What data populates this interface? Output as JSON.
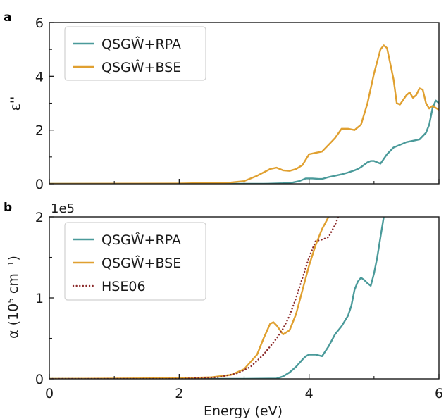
{
  "chart_data": [
    {
      "type": "line",
      "panel": "a",
      "xlabel": "",
      "ylabel": "ε''",
      "xlim": [
        0,
        6
      ],
      "ylim": [
        0,
        6
      ],
      "x_ticks": [
        "0",
        "2",
        "4",
        "6"
      ],
      "y_ticks": [
        "0",
        "2",
        "4",
        "6"
      ],
      "show_x_tick_labels": false,
      "grid": false,
      "legend_position": "top-left",
      "series": [
        {
          "name": "QSGŴ+RPA",
          "color": "#4a9a9a",
          "style": "solid",
          "x": [
            0,
            2.0,
            3.0,
            3.3,
            3.6,
            3.75,
            3.85,
            3.95,
            4.05,
            4.15,
            4.2,
            4.3,
            4.4,
            4.5,
            4.6,
            4.7,
            4.75,
            4.8,
            4.9,
            4.95,
            5.0,
            5.1,
            5.2,
            5.3,
            5.4,
            5.5,
            5.6,
            5.7,
            5.8,
            5.85,
            5.9,
            5.95,
            6.0
          ],
          "y": [
            0,
            0,
            0,
            0,
            0.02,
            0.05,
            0.1,
            0.2,
            0.2,
            0.18,
            0.18,
            0.25,
            0.3,
            0.35,
            0.42,
            0.5,
            0.55,
            0.62,
            0.8,
            0.85,
            0.85,
            0.75,
            1.1,
            1.35,
            1.45,
            1.55,
            1.6,
            1.65,
            1.9,
            2.2,
            2.8,
            3.1,
            3.0
          ]
        },
        {
          "name": "QSGŴ+BSE",
          "color": "#e0a030",
          "style": "solid",
          "x": [
            0,
            2.0,
            2.8,
            3.0,
            3.2,
            3.4,
            3.5,
            3.6,
            3.7,
            3.8,
            3.9,
            4.0,
            4.1,
            4.2,
            4.3,
            4.4,
            4.5,
            4.6,
            4.7,
            4.8,
            4.9,
            5.0,
            5.1,
            5.15,
            5.2,
            5.3,
            5.35,
            5.4,
            5.5,
            5.55,
            5.6,
            5.65,
            5.7,
            5.75,
            5.8,
            5.85,
            5.9,
            6.0
          ],
          "y": [
            0,
            0.01,
            0.05,
            0.1,
            0.3,
            0.55,
            0.6,
            0.5,
            0.48,
            0.55,
            0.7,
            1.1,
            1.15,
            1.2,
            1.45,
            1.7,
            2.05,
            2.05,
            2.0,
            2.2,
            3.0,
            4.1,
            5.0,
            5.15,
            5.05,
            3.9,
            3.0,
            2.95,
            3.3,
            3.4,
            3.2,
            3.3,
            3.55,
            3.5,
            3.0,
            2.8,
            2.9,
            2.75
          ]
        }
      ]
    },
    {
      "type": "line",
      "panel": "b",
      "xlabel": "Energy (eV)",
      "ylabel": "α (10⁵ cm⁻¹)",
      "y_multiplier": "1e5",
      "xlim": [
        0,
        6
      ],
      "ylim": [
        0,
        2
      ],
      "x_ticks": [
        "0",
        "2",
        "4",
        "6"
      ],
      "y_ticks": [
        "0",
        "1",
        "2"
      ],
      "grid": false,
      "legend_position": "top-left",
      "series": [
        {
          "name": "QSGŴ+RPA",
          "color": "#4a9a9a",
          "style": "solid",
          "x": [
            0,
            2.0,
            3.0,
            3.5,
            3.6,
            3.7,
            3.8,
            3.9,
            3.95,
            4.0,
            4.05,
            4.1,
            4.2,
            4.3,
            4.4,
            4.5,
            4.6,
            4.65,
            4.7,
            4.75,
            4.8,
            4.85,
            4.9,
            4.95,
            5.0,
            5.05,
            5.1,
            5.15
          ],
          "y": [
            0,
            0,
            0,
            0.005,
            0.03,
            0.08,
            0.15,
            0.24,
            0.28,
            0.3,
            0.3,
            0.3,
            0.28,
            0.4,
            0.55,
            0.65,
            0.78,
            0.9,
            1.1,
            1.2,
            1.25,
            1.22,
            1.18,
            1.15,
            1.3,
            1.5,
            1.75,
            2.0
          ]
        },
        {
          "name": "QSGŴ+BSE",
          "color": "#e0a030",
          "style": "solid",
          "x": [
            0,
            2.0,
            2.5,
            2.8,
            3.0,
            3.2,
            3.3,
            3.4,
            3.45,
            3.5,
            3.6,
            3.7,
            3.8,
            3.9,
            4.0,
            4.1,
            4.2,
            4.3
          ],
          "y": [
            0,
            0.01,
            0.02,
            0.05,
            0.12,
            0.3,
            0.5,
            0.68,
            0.7,
            0.66,
            0.55,
            0.6,
            0.8,
            1.1,
            1.4,
            1.65,
            1.85,
            2.0
          ]
        },
        {
          "name": "HSE06",
          "color": "#8b2a2a",
          "style": "dotted",
          "x": [
            0,
            2.0,
            2.6,
            2.9,
            3.1,
            3.3,
            3.5,
            3.6,
            3.7,
            3.8,
            3.9,
            4.0,
            4.1,
            4.2,
            4.3,
            4.4,
            4.45
          ],
          "y": [
            0,
            0,
            0.02,
            0.07,
            0.15,
            0.3,
            0.5,
            0.62,
            0.78,
            1.0,
            1.25,
            1.5,
            1.7,
            1.72,
            1.75,
            1.9,
            2.0
          ]
        }
      ]
    }
  ]
}
